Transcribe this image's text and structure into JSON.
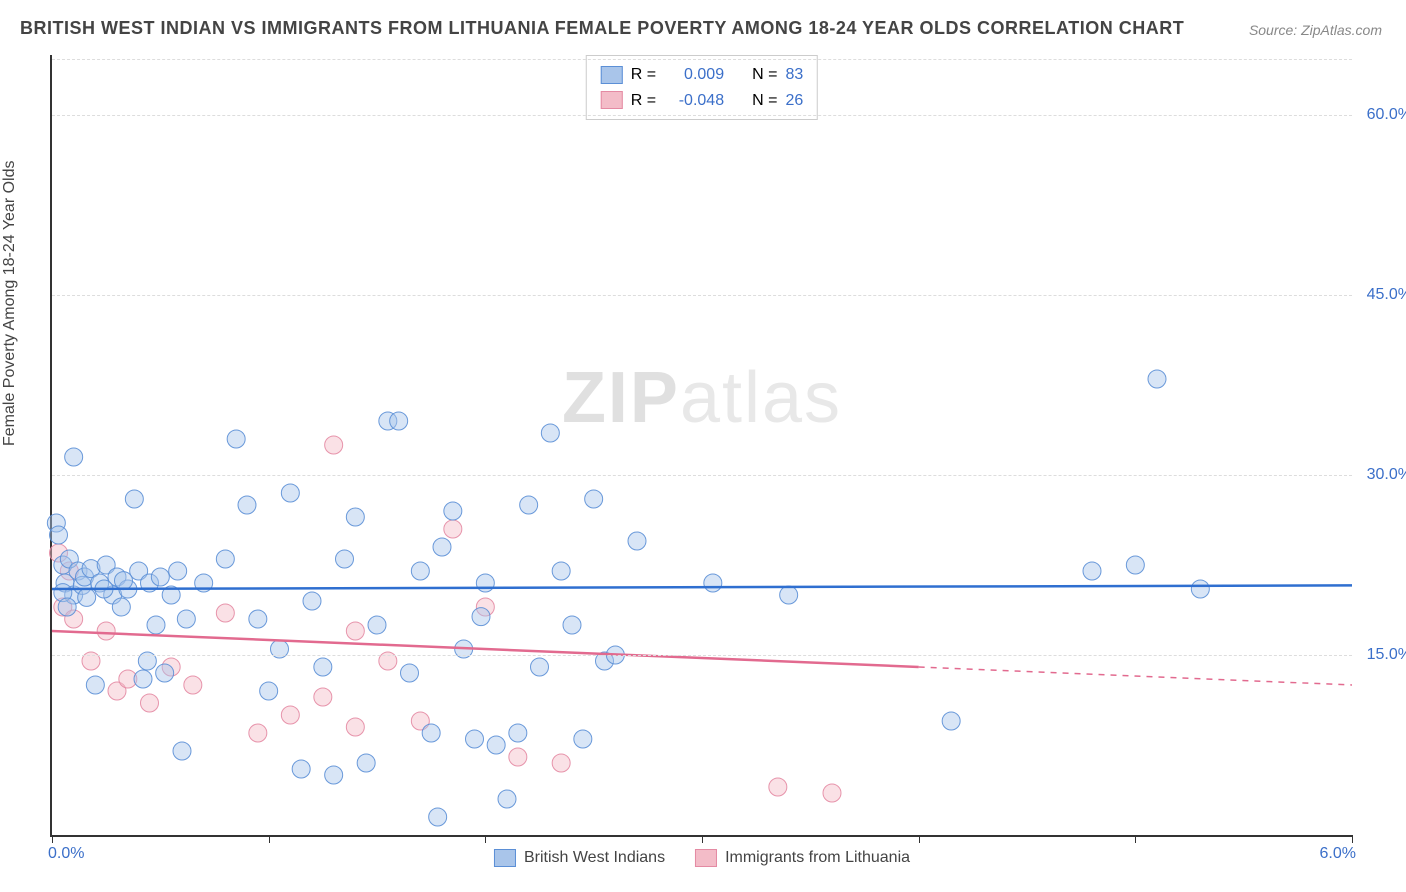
{
  "title": "BRITISH WEST INDIAN VS IMMIGRANTS FROM LITHUANIA FEMALE POVERTY AMONG 18-24 YEAR OLDS CORRELATION CHART",
  "source": "Source: ZipAtlas.com",
  "ylabel": "Female Poverty Among 18-24 Year Olds",
  "watermark_a": "ZIP",
  "watermark_b": "atlas",
  "chart": {
    "type": "scatter",
    "xlim": [
      0.0,
      6.0
    ],
    "ylim": [
      0.0,
      65.0
    ],
    "x_ticks": [
      0.0,
      1.0,
      2.0,
      3.0,
      4.0,
      5.0,
      6.0
    ],
    "x_tick_labels_shown": {
      "0": "0.0%",
      "6": "6.0%"
    },
    "y_grid": [
      15.0,
      30.0,
      45.0,
      60.0
    ],
    "y_tick_labels": [
      "15.0%",
      "30.0%",
      "45.0%",
      "60.0%"
    ],
    "marker_radius": 9,
    "marker_fill_opacity": 0.45,
    "marker_stroke_opacity": 0.9,
    "marker_stroke_width": 1,
    "series_a": {
      "name": "British West Indians",
      "color_fill": "#a9c5ea",
      "color_stroke": "#5b8fd6",
      "line_color": "#2f6fd0",
      "line_width": 2.5,
      "R": "0.009",
      "N": "83",
      "trend": {
        "y_at_x0": 20.5,
        "y_at_x6": 20.8,
        "x_solid_max": 6.0
      },
      "points": [
        [
          0.02,
          26.0
        ],
        [
          0.03,
          25.0
        ],
        [
          0.05,
          22.5
        ],
        [
          0.06,
          21.0
        ],
        [
          0.08,
          23.0
        ],
        [
          0.1,
          20.0
        ],
        [
          0.1,
          31.5
        ],
        [
          0.12,
          22.0
        ],
        [
          0.14,
          20.8
        ],
        [
          0.15,
          21.5
        ],
        [
          0.18,
          22.2
        ],
        [
          0.2,
          12.5
        ],
        [
          0.22,
          21.0
        ],
        [
          0.25,
          22.5
        ],
        [
          0.28,
          20.0
        ],
        [
          0.3,
          21.5
        ],
        [
          0.32,
          19.0
        ],
        [
          0.35,
          20.5
        ],
        [
          0.38,
          28.0
        ],
        [
          0.4,
          22.0
        ],
        [
          0.42,
          13.0
        ],
        [
          0.45,
          21.0
        ],
        [
          0.48,
          17.5
        ],
        [
          0.5,
          21.5
        ],
        [
          0.52,
          13.5
        ],
        [
          0.55,
          20.0
        ],
        [
          0.58,
          22.0
        ],
        [
          0.6,
          7.0
        ],
        [
          0.7,
          21.0
        ],
        [
          0.8,
          23.0
        ],
        [
          0.85,
          33.0
        ],
        [
          0.9,
          27.5
        ],
        [
          0.95,
          18.0
        ],
        [
          1.0,
          12.0
        ],
        [
          1.05,
          15.5
        ],
        [
          1.1,
          28.5
        ],
        [
          1.15,
          5.5
        ],
        [
          1.2,
          19.5
        ],
        [
          1.25,
          14.0
        ],
        [
          1.3,
          5.0
        ],
        [
          1.35,
          23.0
        ],
        [
          1.4,
          26.5
        ],
        [
          1.45,
          6.0
        ],
        [
          1.5,
          17.5
        ],
        [
          1.55,
          34.5
        ],
        [
          1.6,
          34.5
        ],
        [
          1.65,
          13.5
        ],
        [
          1.7,
          22.0
        ],
        [
          1.75,
          8.5
        ],
        [
          1.78,
          1.5
        ],
        [
          1.8,
          24.0
        ],
        [
          1.85,
          27.0
        ],
        [
          1.9,
          15.5
        ],
        [
          1.95,
          8.0
        ],
        [
          1.98,
          18.2
        ],
        [
          2.0,
          21.0
        ],
        [
          2.05,
          7.5
        ],
        [
          2.1,
          3.0
        ],
        [
          2.15,
          8.5
        ],
        [
          2.2,
          27.5
        ],
        [
          2.25,
          14.0
        ],
        [
          2.3,
          33.5
        ],
        [
          2.35,
          22.0
        ],
        [
          2.4,
          17.5
        ],
        [
          2.45,
          8.0
        ],
        [
          2.5,
          28.0
        ],
        [
          2.55,
          14.5
        ],
        [
          2.6,
          15.0
        ],
        [
          2.7,
          24.5
        ],
        [
          3.05,
          21.0
        ],
        [
          3.4,
          20.0
        ],
        [
          4.15,
          9.5
        ],
        [
          4.8,
          22.0
        ],
        [
          5.0,
          22.5
        ],
        [
          5.1,
          38.0
        ],
        [
          5.3,
          20.5
        ],
        [
          0.05,
          20.2
        ],
        [
          0.07,
          19.0
        ],
        [
          0.16,
          19.8
        ],
        [
          0.24,
          20.5
        ],
        [
          0.33,
          21.2
        ],
        [
          0.44,
          14.5
        ],
        [
          0.62,
          18.0
        ]
      ]
    },
    "series_b": {
      "name": "Immigrants from Lithuania",
      "color_fill": "#f3bcc8",
      "color_stroke": "#e48aa3",
      "line_color": "#e26a8f",
      "line_width": 2.5,
      "R": "-0.048",
      "N": "26",
      "trend": {
        "y_at_x0": 17.0,
        "y_at_x6": 12.5,
        "x_solid_max": 4.0
      },
      "points": [
        [
          0.03,
          23.5
        ],
        [
          0.05,
          19.0
        ],
        [
          0.08,
          22.0
        ],
        [
          0.1,
          18.0
        ],
        [
          0.18,
          14.5
        ],
        [
          0.25,
          17.0
        ],
        [
          0.3,
          12.0
        ],
        [
          0.35,
          13.0
        ],
        [
          0.45,
          11.0
        ],
        [
          0.55,
          14.0
        ],
        [
          0.65,
          12.5
        ],
        [
          0.8,
          18.5
        ],
        [
          0.95,
          8.5
        ],
        [
          1.1,
          10.0
        ],
        [
          1.25,
          11.5
        ],
        [
          1.3,
          32.5
        ],
        [
          1.4,
          17.0
        ],
        [
          1.4,
          9.0
        ],
        [
          1.55,
          14.5
        ],
        [
          1.7,
          9.5
        ],
        [
          1.85,
          25.5
        ],
        [
          2.0,
          19.0
        ],
        [
          2.15,
          6.5
        ],
        [
          2.35,
          6.0
        ],
        [
          3.35,
          4.0
        ],
        [
          3.6,
          3.5
        ]
      ]
    }
  },
  "legend_corr": {
    "R_label": "R =",
    "N_label": "N ="
  },
  "colors": {
    "title": "#444444",
    "axis": "#333333",
    "grid": "#dddddd",
    "tick_text": "#3b6fc9",
    "source": "#888888",
    "watermark": "#e4e4e4"
  },
  "fonts": {
    "title_size": 18,
    "axis_label_size": 16,
    "tick_size": 16,
    "legend_size": 16,
    "watermark_size": 72
  }
}
